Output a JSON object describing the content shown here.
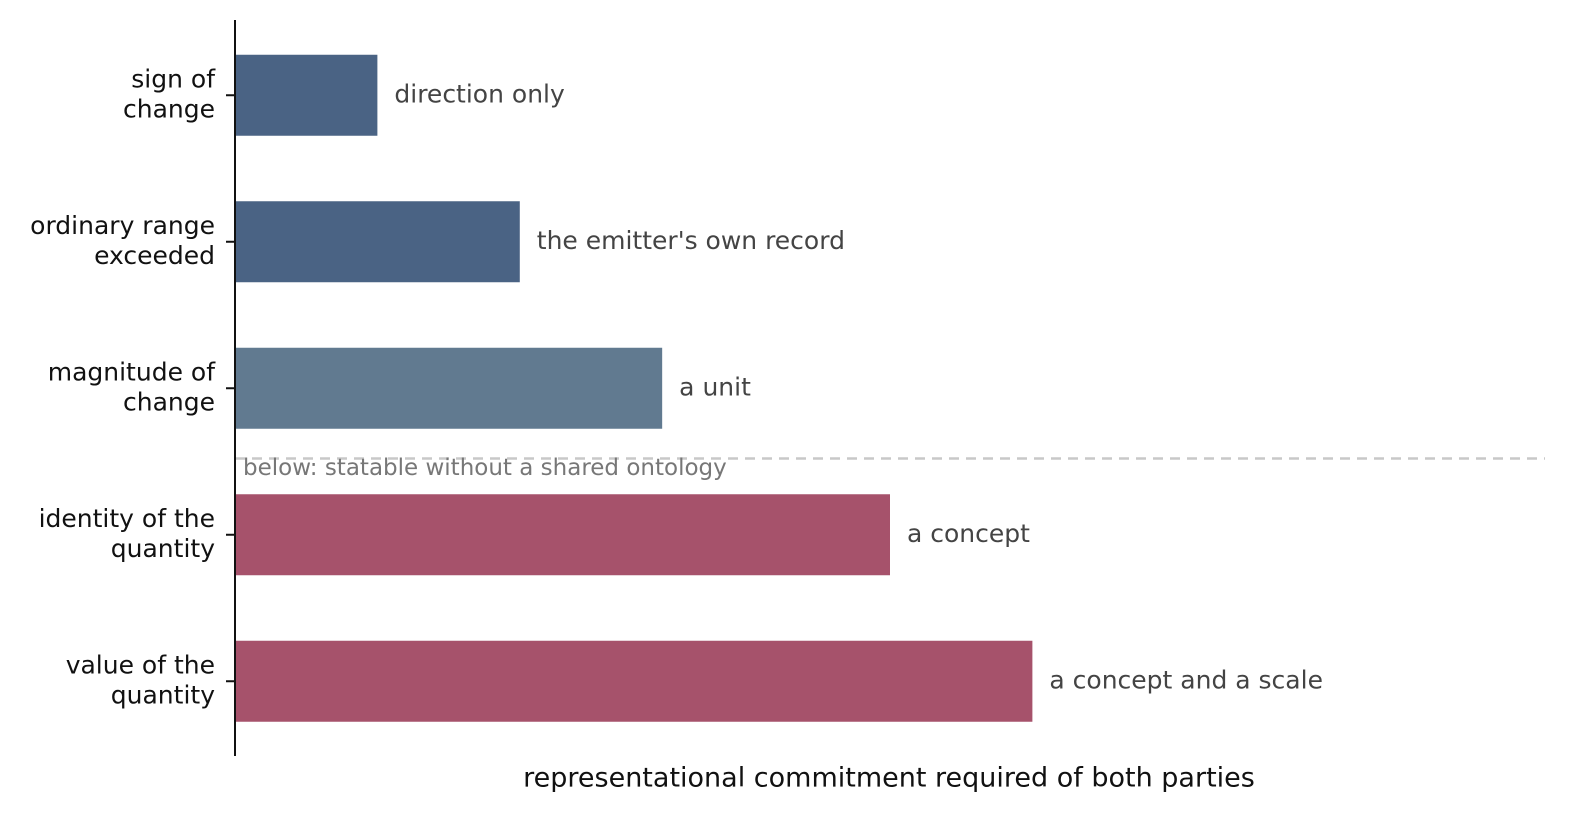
{
  "chart_data": {
    "type": "barh",
    "categories": [
      "sign of\nchange",
      "ordinary range\nexceeded",
      "magnitude of\nchange",
      "identity of the\nquantity",
      "value of the\nquantity"
    ],
    "values": [
      1,
      2,
      3,
      4.6,
      5.6
    ],
    "colors": [
      "#4a6384",
      "#4a6384",
      "#617a90",
      "#a6526b",
      "#a6526b"
    ],
    "bar_labels": [
      "direction only",
      "the emitter's own record",
      "a unit",
      "a concept",
      "a concept and a scale"
    ],
    "xlim": [
      0,
      9.2
    ],
    "xlabel": "representational commitment required of both parties",
    "annotation": "below: statable without a shared ontology"
  }
}
